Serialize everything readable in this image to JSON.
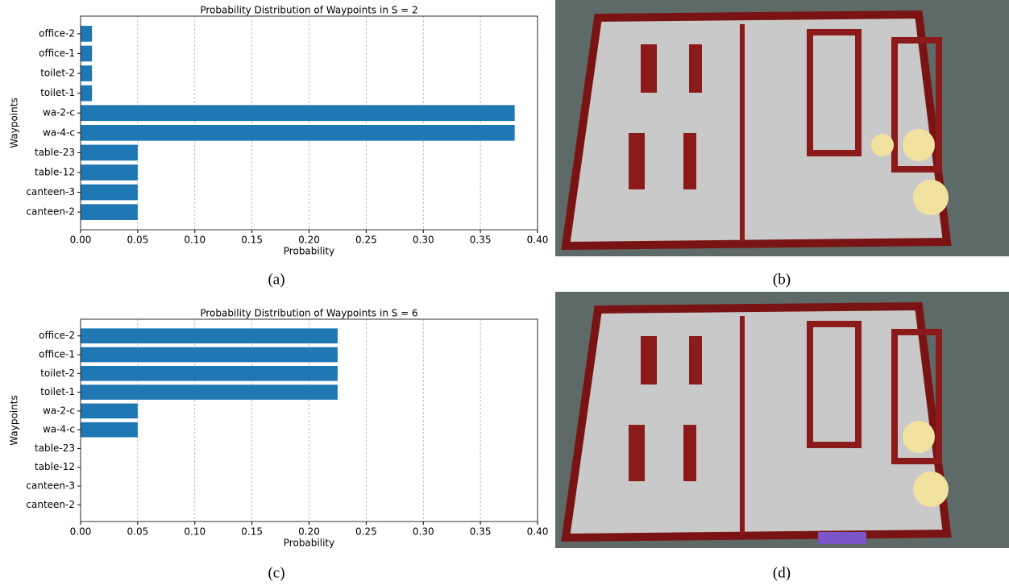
{
  "chart_data": [
    {
      "type": "barh",
      "title": "Probability Distribution of Waypoints in S = 2",
      "xlabel": "Probability",
      "ylabel": "Waypoints",
      "categories": [
        "office-2",
        "office-1",
        "toilet-2",
        "toilet-1",
        "wa-2-c",
        "wa-4-c",
        "table-23",
        "table-12",
        "canteen-3",
        "canteen-2"
      ],
      "values": [
        0.01,
        0.01,
        0.01,
        0.01,
        0.38,
        0.38,
        0.05,
        0.05,
        0.05,
        0.05
      ],
      "color": "#1f77b4",
      "xlim": [
        0,
        0.4
      ],
      "xticks": [
        {
          "value": 0,
          "label": "0.00"
        },
        {
          "value": 0.05,
          "label": "0.05"
        },
        {
          "value": 0.1,
          "label": "0.10"
        },
        {
          "value": 0.15,
          "label": "0.15"
        },
        {
          "value": 0.2,
          "label": "0.20"
        },
        {
          "value": 0.25,
          "label": "0.25"
        },
        {
          "value": 0.3,
          "label": "0.30"
        },
        {
          "value": 0.35,
          "label": "0.35"
        },
        {
          "value": 0.4,
          "label": "0.40"
        }
      ],
      "grid": true
    },
    {
      "type": "barh",
      "title": "Probability Distribution of Waypoints in S = 6",
      "xlabel": "Probability",
      "ylabel": "Waypoints",
      "categories": [
        "office-2",
        "office-1",
        "toilet-2",
        "toilet-1",
        "wa-2-c",
        "wa-4-c",
        "table-23",
        "table-12",
        "canteen-3",
        "canteen-2"
      ],
      "values": [
        0.225,
        0.225,
        0.225,
        0.225,
        0.05,
        0.05,
        0,
        0,
        0,
        0
      ],
      "color": "#1f77b4",
      "xlim": [
        0,
        0.4
      ],
      "xticks": [
        {
          "value": 0,
          "label": "0.00"
        },
        {
          "value": 0.05,
          "label": "0.05"
        },
        {
          "value": 0.1,
          "label": "0.10"
        },
        {
          "value": 0.15,
          "label": "0.15"
        },
        {
          "value": 0.2,
          "label": "0.20"
        },
        {
          "value": 0.25,
          "label": "0.25"
        },
        {
          "value": 0.3,
          "label": "0.30"
        },
        {
          "value": 0.35,
          "label": "0.35"
        },
        {
          "value": 0.4,
          "label": "0.40"
        }
      ],
      "grid": true
    }
  ],
  "captions": [
    "(a)",
    "(b)",
    "(c)",
    "(d)"
  ]
}
